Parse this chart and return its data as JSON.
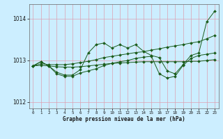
{
  "xlabel": "Graphe pression niveau de la mer (hPa)",
  "background_color": "#cceeff",
  "grid_color": "#dda0b0",
  "line_color": "#1a5c1a",
  "xlim": [
    -0.5,
    23.5
  ],
  "ylim": [
    1011.85,
    1014.35
  ],
  "yticks": [
    1012,
    1013,
    1014
  ],
  "xticks": [
    0,
    1,
    2,
    3,
    4,
    5,
    6,
    7,
    8,
    9,
    10,
    11,
    12,
    13,
    14,
    15,
    16,
    17,
    18,
    19,
    20,
    21,
    22,
    23
  ],
  "s1": [
    1012.87,
    1012.97,
    1012.87,
    1012.72,
    1012.65,
    1012.65,
    1012.78,
    1013.18,
    1013.38,
    1013.42,
    1013.3,
    1013.38,
    1013.3,
    1013.38,
    1013.22,
    1013.12,
    1013.07,
    1012.75,
    1012.68,
    1012.9,
    1013.12,
    1013.18,
    1013.93,
    1014.18
  ],
  "s2": [
    1012.87,
    1012.92,
    1012.9,
    1012.9,
    1012.9,
    1012.92,
    1012.95,
    1012.98,
    1013.02,
    1013.07,
    1013.1,
    1013.13,
    1013.16,
    1013.19,
    1013.21,
    1013.25,
    1013.28,
    1013.32,
    1013.35,
    1013.38,
    1013.42,
    1013.45,
    1013.52,
    1013.6
  ],
  "s3": [
    1012.87,
    1012.88,
    1012.87,
    1012.85,
    1012.84,
    1012.84,
    1012.85,
    1012.87,
    1012.89,
    1012.91,
    1012.93,
    1012.94,
    1012.95,
    1012.96,
    1012.97,
    1012.97,
    1012.97,
    1012.97,
    1012.97,
    1012.97,
    1012.98,
    1012.98,
    1013.0,
    1013.02
  ],
  "s4": [
    1012.87,
    1012.97,
    1012.87,
    1012.68,
    1012.62,
    1012.62,
    1012.7,
    1012.75,
    1012.8,
    1012.88,
    1012.93,
    1012.97,
    1013.0,
    1013.05,
    1013.08,
    1013.1,
    1012.68,
    1012.58,
    1012.62,
    1012.88,
    1013.05,
    1013.12,
    1013.15,
    1013.18
  ]
}
